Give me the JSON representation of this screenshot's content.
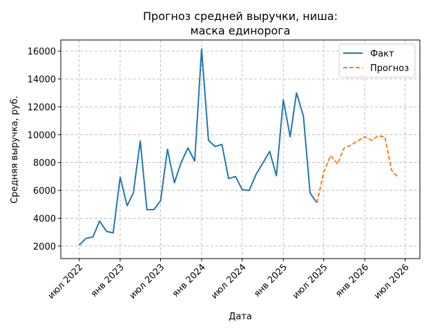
{
  "chart_data": {
    "type": "line",
    "title": [
      "Прогноз средней выручки, ниша:",
      "маска единорога"
    ],
    "xlabel": "Дата",
    "ylabel": "Средняя выручка, руб.",
    "ylim": [
      1100,
      16800
    ],
    "xlim": [
      "2022-04-10",
      "2026-09-05"
    ],
    "grid": true,
    "legend_position": "top-right",
    "y_ticks": [
      2000,
      4000,
      6000,
      8000,
      10000,
      12000,
      14000,
      16000
    ],
    "y_tick_labels": [
      "2000",
      "4000",
      "6000",
      "8000",
      "10000",
      "12000",
      "14000",
      "16000"
    ],
    "x_ticks": [
      "2022-07-01",
      "2023-01-01",
      "2023-07-01",
      "2024-01-01",
      "2024-07-01",
      "2025-01-01",
      "2025-07-01",
      "2026-01-01",
      "2026-07-01"
    ],
    "x_tick_labels": [
      "июл 2022",
      "янв 2023",
      "июл 2023",
      "янв 2024",
      "июл 2024",
      "янв 2025",
      "июл 2025",
      "янв 2026",
      "июл 2026"
    ],
    "series": [
      {
        "name": "Факт",
        "color": "#1f77b4",
        "style": "solid",
        "x": [
          "2022-07-01",
          "2022-08-01",
          "2022-09-01",
          "2022-10-01",
          "2022-11-01",
          "2022-12-01",
          "2023-01-01",
          "2023-02-01",
          "2023-03-01",
          "2023-04-01",
          "2023-05-01",
          "2023-06-01",
          "2023-07-01",
          "2023-08-01",
          "2023-09-01",
          "2023-10-01",
          "2023-11-01",
          "2023-12-01",
          "2024-01-01",
          "2024-02-01",
          "2024-03-01",
          "2024-04-01",
          "2024-05-01",
          "2024-06-01",
          "2024-07-01",
          "2024-08-01",
          "2024-09-01",
          "2024-10-01",
          "2024-11-01",
          "2024-12-01",
          "2025-01-01",
          "2025-02-01",
          "2025-03-01",
          "2025-04-01",
          "2025-05-01",
          "2025-06-01"
        ],
        "values": [
          2050,
          2550,
          2650,
          3800,
          3050,
          2950,
          6950,
          4900,
          5800,
          9550,
          4600,
          4620,
          5250,
          8950,
          6550,
          8000,
          9050,
          8100,
          16150,
          9600,
          9150,
          9300,
          6850,
          7000,
          6050,
          6000,
          7150,
          7950,
          8800,
          7050,
          12500,
          9850,
          13000,
          11350,
          5800,
          5100
        ]
      },
      {
        "name": "Прогноз",
        "color": "#ff7f0e",
        "style": "dashed",
        "x": [
          "2025-06-01",
          "2025-07-01",
          "2025-08-01",
          "2025-09-01",
          "2025-10-01",
          "2025-11-01",
          "2025-12-01",
          "2026-01-01",
          "2026-02-01",
          "2026-03-01",
          "2026-04-01",
          "2026-05-01",
          "2026-06-01"
        ],
        "values": [
          5100,
          7300,
          8500,
          7900,
          9050,
          9250,
          9550,
          9850,
          9600,
          9900,
          9850,
          7450,
          6900
        ]
      }
    ]
  }
}
